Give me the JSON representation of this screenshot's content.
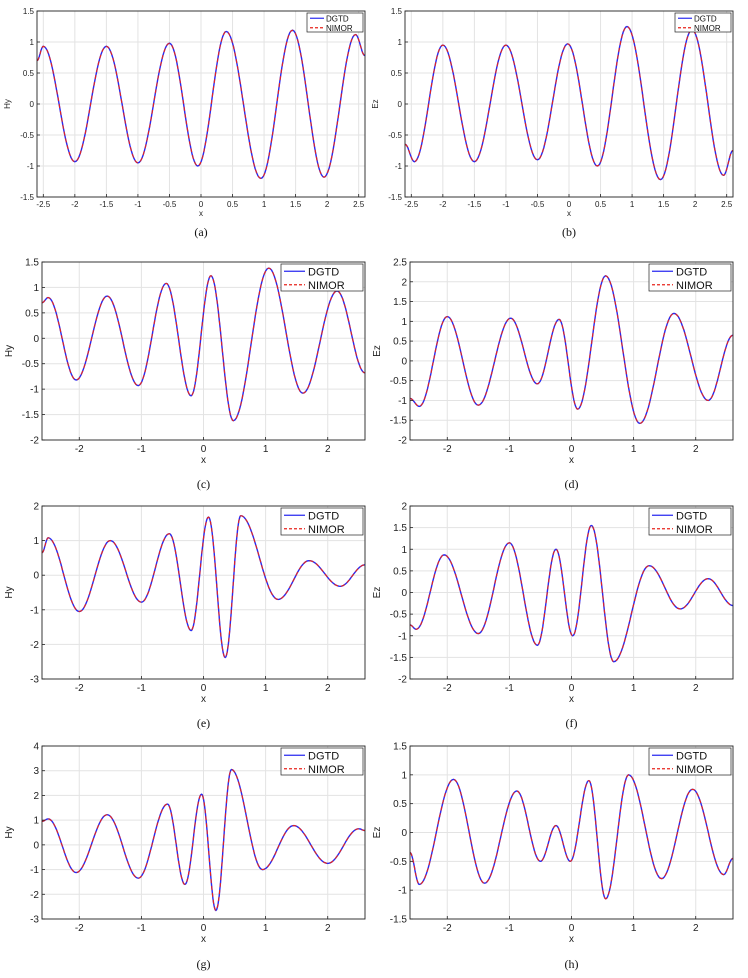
{
  "colors": {
    "dgtd": "#2a2af0",
    "nimor": "#e8241c",
    "grid": "#e3e3e3",
    "axis": "#222222"
  },
  "charts": [
    {
      "id": "a",
      "caption": "(a)",
      "ylabel": "Hy",
      "xlabel": "x",
      "xlim": [
        -2.6,
        2.6
      ],
      "ylim": [
        -1.5,
        1.5
      ],
      "xticks": [
        -2.5,
        -2,
        -1.5,
        -1,
        -0.5,
        0,
        0.5,
        1,
        1.5,
        2,
        2.5
      ],
      "xtick_labels": [
        "-2.5",
        "-2",
        "-1.5",
        "-1",
        "-0.5",
        "0",
        "0.5",
        "1",
        "1.5",
        "2",
        "2.5"
      ],
      "yticks": [
        -1.5,
        -1,
        -0.5,
        0,
        0.5,
        1,
        1.5
      ],
      "ytick_labels": [
        "-1.5",
        "-1",
        "-0.5",
        "0",
        "0.5",
        "1",
        "1.5"
      ],
      "legend": [
        "DGTD",
        "NIMOR"
      ],
      "legend_placement": "top-right",
      "series": [
        {
          "name": "DGTD",
          "style": "solid",
          "x": [
            -2.6,
            -2.5,
            -2.0,
            -1.5,
            -1.0,
            -0.5,
            -0.05,
            0.4,
            0.95,
            1.45,
            1.95,
            2.45,
            2.6
          ],
          "y": [
            0.7,
            0.93,
            -0.93,
            0.93,
            -0.95,
            0.98,
            -1.0,
            1.17,
            -1.2,
            1.19,
            -1.18,
            1.12,
            0.78
          ]
        },
        {
          "name": "NIMOR",
          "style": "dashed",
          "x": [
            -2.6,
            -2.5,
            -2.0,
            -1.5,
            -1.0,
            -0.5,
            -0.05,
            0.4,
            0.95,
            1.45,
            1.95,
            2.45,
            2.6
          ],
          "y": [
            0.7,
            0.93,
            -0.93,
            0.93,
            -0.95,
            0.98,
            -1.0,
            1.17,
            -1.2,
            1.19,
            -1.18,
            1.12,
            0.78
          ]
        }
      ]
    },
    {
      "id": "b",
      "caption": "(b)",
      "ylabel": "Ez",
      "xlabel": "x",
      "xlim": [
        -2.6,
        2.6
      ],
      "ylim": [
        -1.5,
        1.5
      ],
      "xticks": [
        -2.5,
        -2,
        -1.5,
        -1,
        -0.5,
        0,
        0.5,
        1,
        1.5,
        2,
        2.5
      ],
      "xtick_labels": [
        "-2.5",
        "-2",
        "-1.5",
        "-1",
        "-0.5",
        "0",
        "0.5",
        "1",
        "1.5",
        "2",
        "2.5"
      ],
      "yticks": [
        -1.5,
        -1,
        -0.5,
        0,
        0.5,
        1,
        1.5
      ],
      "ytick_labels": [
        "-1.5",
        "-1",
        "-0.5",
        "0",
        "0.5",
        "1",
        "1.5"
      ],
      "legend": [
        "DGTD",
        "NIMOR"
      ],
      "legend_placement": "top-right",
      "series": [
        {
          "name": "DGTD",
          "style": "solid",
          "x": [
            -2.6,
            -2.45,
            -2.0,
            -1.5,
            -1.0,
            -0.5,
            -0.02,
            0.45,
            0.92,
            1.45,
            1.95,
            2.45,
            2.6
          ],
          "y": [
            -0.65,
            -0.93,
            0.95,
            -0.93,
            0.95,
            -0.9,
            0.97,
            -1.0,
            1.25,
            -1.22,
            1.2,
            -1.15,
            -0.75
          ]
        },
        {
          "name": "NIMOR",
          "style": "dashed",
          "x": [
            -2.6,
            -2.45,
            -2.0,
            -1.5,
            -1.0,
            -0.5,
            -0.02,
            0.45,
            0.92,
            1.45,
            1.95,
            2.45,
            2.6
          ],
          "y": [
            -0.65,
            -0.93,
            0.95,
            -0.93,
            0.95,
            -0.9,
            0.97,
            -1.0,
            1.25,
            -1.22,
            1.2,
            -1.15,
            -0.75
          ]
        }
      ]
    },
    {
      "id": "c",
      "caption": "(c)",
      "ylabel": "Hy",
      "xlabel": "x",
      "xlim": [
        -2.6,
        2.6
      ],
      "ylim": [
        -2,
        1.5
      ],
      "xticks": [
        -2,
        -1,
        0,
        1,
        2
      ],
      "xtick_labels": [
        "-2",
        "-1",
        "0",
        "1",
        "2"
      ],
      "yticks": [
        -2,
        -1.5,
        -1,
        -0.5,
        0,
        0.5,
        1,
        1.5
      ],
      "ytick_labels": [
        "-2",
        "-1.5",
        "-1",
        "-0.5",
        "0",
        "0.5",
        "1",
        "1.5"
      ],
      "legend": [
        "DGTD",
        "NIMOR"
      ],
      "legend_placement": "top-right",
      "series": [
        {
          "name": "DGTD",
          "style": "solid",
          "x": [
            -2.6,
            -2.5,
            -2.05,
            -1.55,
            -1.05,
            -0.6,
            -0.2,
            0.12,
            0.48,
            1.05,
            1.6,
            2.15,
            2.6
          ],
          "y": [
            0.7,
            0.8,
            -0.82,
            0.83,
            -0.93,
            1.08,
            -1.13,
            1.23,
            -1.62,
            1.38,
            -1.08,
            0.93,
            -0.68
          ]
        },
        {
          "name": "NIMOR",
          "style": "dashed",
          "x": [
            -2.6,
            -2.5,
            -2.05,
            -1.55,
            -1.05,
            -0.6,
            -0.2,
            0.12,
            0.48,
            1.05,
            1.6,
            2.15,
            2.6
          ],
          "y": [
            0.7,
            0.8,
            -0.82,
            0.83,
            -0.93,
            1.08,
            -1.13,
            1.23,
            -1.62,
            1.38,
            -1.08,
            0.93,
            -0.68
          ]
        }
      ]
    },
    {
      "id": "d",
      "caption": "(d)",
      "ylabel": "Ez",
      "xlabel": "x",
      "xlim": [
        -2.6,
        2.6
      ],
      "ylim": [
        -2,
        2.5
      ],
      "xticks": [
        -2,
        -1,
        0,
        1,
        2
      ],
      "xtick_labels": [
        "-2",
        "-1",
        "0",
        "1",
        "2"
      ],
      "yticks": [
        -2,
        -1.5,
        -1,
        -0.5,
        0,
        0.5,
        1,
        1.5,
        2,
        2.5
      ],
      "ytick_labels": [
        "-2",
        "-1.5",
        "-1",
        "-0.5",
        "0",
        "0.5",
        "1",
        "1.5",
        "2",
        "2.5"
      ],
      "legend": [
        "DGTD",
        "NIMOR"
      ],
      "legend_placement": "top-right",
      "series": [
        {
          "name": "DGTD",
          "style": "solid",
          "x": [
            -2.6,
            -2.45,
            -2.0,
            -1.5,
            -0.98,
            -0.55,
            -0.2,
            0.1,
            0.55,
            1.1,
            1.65,
            2.2,
            2.6
          ],
          "y": [
            -0.95,
            -1.15,
            1.12,
            -1.12,
            1.08,
            -0.58,
            1.05,
            -1.22,
            2.15,
            -1.58,
            1.2,
            -1.0,
            0.65
          ]
        },
        {
          "name": "NIMOR",
          "style": "dashed",
          "x": [
            -2.6,
            -2.45,
            -2.0,
            -1.5,
            -0.98,
            -0.55,
            -0.2,
            0.1,
            0.55,
            1.1,
            1.65,
            2.2,
            2.6
          ],
          "y": [
            -0.95,
            -1.15,
            1.12,
            -1.12,
            1.08,
            -0.58,
            1.05,
            -1.22,
            2.15,
            -1.58,
            1.2,
            -1.0,
            0.65
          ]
        }
      ]
    },
    {
      "id": "e",
      "caption": "(e)",
      "ylabel": "Hy",
      "xlabel": "x",
      "xlim": [
        -2.6,
        2.6
      ],
      "ylim": [
        -3,
        2
      ],
      "xticks": [
        -2,
        -1,
        0,
        1,
        2
      ],
      "xtick_labels": [
        "-2",
        "-1",
        "0",
        "1",
        "2"
      ],
      "yticks": [
        -3,
        -2,
        -1,
        0,
        1,
        2
      ],
      "ytick_labels": [
        "-3",
        "-2",
        "-1",
        "0",
        "1",
        "2"
      ],
      "legend": [
        "DGTD",
        "NIMOR"
      ],
      "legend_placement": "top-right",
      "series": [
        {
          "name": "DGTD",
          "style": "solid",
          "x": [
            -2.6,
            -2.5,
            -2.0,
            -1.5,
            -1.0,
            -0.55,
            -0.2,
            0.08,
            0.35,
            0.6,
            1.2,
            1.7,
            2.2,
            2.6
          ],
          "y": [
            0.65,
            1.08,
            -1.05,
            1.0,
            -0.78,
            1.2,
            -1.6,
            1.68,
            -2.38,
            1.72,
            -0.7,
            0.42,
            -0.32,
            0.3
          ]
        },
        {
          "name": "NIMOR",
          "style": "dashed",
          "x": [
            -2.6,
            -2.5,
            -2.0,
            -1.5,
            -1.0,
            -0.55,
            -0.2,
            0.08,
            0.35,
            0.6,
            1.2,
            1.7,
            2.2,
            2.6
          ],
          "y": [
            0.65,
            1.08,
            -1.05,
            1.0,
            -0.78,
            1.2,
            -1.6,
            1.68,
            -2.38,
            1.72,
            -0.7,
            0.42,
            -0.32,
            0.3
          ]
        }
      ]
    },
    {
      "id": "f",
      "caption": "(f)",
      "ylabel": "Ez",
      "xlabel": "x",
      "xlim": [
        -2.6,
        2.6
      ],
      "ylim": [
        -2,
        2
      ],
      "xticks": [
        -2,
        -1,
        0,
        1,
        2
      ],
      "xtick_labels": [
        "-2",
        "-1",
        "0",
        "1",
        "2"
      ],
      "yticks": [
        -2,
        -1.5,
        -1,
        -0.5,
        0,
        0.5,
        1,
        1.5,
        2
      ],
      "ytick_labels": [
        "-2",
        "-1.5",
        "-1",
        "-0.5",
        "0",
        "0.5",
        "1",
        "1.5",
        "2"
      ],
      "legend": [
        "DGTD",
        "NIMOR"
      ],
      "legend_placement": "top-right",
      "series": [
        {
          "name": "DGTD",
          "style": "solid",
          "x": [
            -2.6,
            -2.5,
            -2.05,
            -1.5,
            -1.0,
            -0.55,
            -0.25,
            0.02,
            0.32,
            0.68,
            1.25,
            1.75,
            2.2,
            2.6
          ],
          "y": [
            -0.75,
            -0.85,
            0.87,
            -0.95,
            1.15,
            -1.22,
            1.0,
            -1.0,
            1.55,
            -1.6,
            0.62,
            -0.38,
            0.32,
            -0.3
          ]
        },
        {
          "name": "NIMOR",
          "style": "dashed",
          "x": [
            -2.6,
            -2.5,
            -2.05,
            -1.5,
            -1.0,
            -0.55,
            -0.25,
            0.02,
            0.32,
            0.68,
            1.25,
            1.75,
            2.2,
            2.6
          ],
          "y": [
            -0.75,
            -0.85,
            0.87,
            -0.95,
            1.15,
            -1.22,
            1.0,
            -1.0,
            1.55,
            -1.6,
            0.62,
            -0.38,
            0.32,
            -0.3
          ]
        }
      ]
    },
    {
      "id": "g",
      "caption": "(g)",
      "ylabel": "Hy",
      "xlabel": "x",
      "xlim": [
        -2.6,
        2.6
      ],
      "ylim": [
        -3,
        4
      ],
      "xticks": [
        -2,
        -1,
        0,
        1,
        2
      ],
      "xtick_labels": [
        "-2",
        "-1",
        "0",
        "1",
        "2"
      ],
      "yticks": [
        -3,
        -2,
        -1,
        0,
        1,
        2,
        3,
        4
      ],
      "ytick_labels": [
        "-3",
        "-2",
        "-1",
        "0",
        "1",
        "2",
        "3",
        "4"
      ],
      "legend": [
        "DGTD",
        "NIMOR"
      ],
      "legend_placement": "top-right",
      "series": [
        {
          "name": "DGTD",
          "style": "solid",
          "x": [
            -2.6,
            -2.5,
            -2.05,
            -1.55,
            -1.05,
            -0.58,
            -0.3,
            -0.03,
            0.2,
            0.45,
            0.95,
            1.45,
            2.0,
            2.5,
            2.6
          ],
          "y": [
            0.95,
            1.05,
            -1.12,
            1.22,
            -1.35,
            1.65,
            -1.6,
            2.05,
            -2.65,
            3.05,
            -1.0,
            0.78,
            -0.75,
            0.65,
            0.58
          ]
        },
        {
          "name": "NIMOR",
          "style": "dashed",
          "x": [
            -2.6,
            -2.5,
            -2.05,
            -1.55,
            -1.05,
            -0.58,
            -0.3,
            -0.03,
            0.2,
            0.45,
            0.95,
            1.45,
            2.0,
            2.5,
            2.6
          ],
          "y": [
            0.95,
            1.05,
            -1.12,
            1.22,
            -1.35,
            1.65,
            -1.6,
            2.05,
            -2.65,
            3.05,
            -1.0,
            0.78,
            -0.75,
            0.65,
            0.58
          ]
        }
      ]
    },
    {
      "id": "h",
      "caption": "(h)",
      "ylabel": "Ez",
      "xlabel": "x",
      "xlim": [
        -2.6,
        2.6
      ],
      "ylim": [
        -1.5,
        1.5
      ],
      "xticks": [
        -2,
        -1,
        0,
        1,
        2
      ],
      "xtick_labels": [
        "-2",
        "-1",
        "0",
        "1",
        "2"
      ],
      "yticks": [
        -1.5,
        -1,
        -0.5,
        0,
        0.5,
        1,
        1.5
      ],
      "ytick_labels": [
        "-1.5",
        "-1",
        "-0.5",
        "0",
        "0.5",
        "1",
        "1.5"
      ],
      "legend": [
        "DGTD",
        "NIMOR"
      ],
      "legend_placement": "top-right",
      "series": [
        {
          "name": "DGTD",
          "style": "solid",
          "x": [
            -2.6,
            -2.45,
            -1.9,
            -1.4,
            -0.88,
            -0.5,
            -0.25,
            -0.02,
            0.28,
            0.55,
            0.92,
            1.45,
            1.95,
            2.45,
            2.6
          ],
          "y": [
            -0.35,
            -0.9,
            0.92,
            -0.88,
            0.72,
            -0.5,
            0.12,
            -0.5,
            0.9,
            -1.15,
            1.0,
            -0.8,
            0.75,
            -0.73,
            -0.45
          ]
        },
        {
          "name": "NIMOR",
          "style": "dashed",
          "x": [
            -2.6,
            -2.45,
            -1.9,
            -1.4,
            -0.88,
            -0.5,
            -0.25,
            -0.02,
            0.28,
            0.55,
            0.92,
            1.45,
            1.95,
            2.45,
            2.6
          ],
          "y": [
            -0.35,
            -0.9,
            0.92,
            -0.88,
            0.72,
            -0.5,
            0.12,
            -0.5,
            0.9,
            -1.15,
            1.0,
            -0.8,
            0.75,
            -0.73,
            -0.45
          ]
        }
      ]
    }
  ]
}
